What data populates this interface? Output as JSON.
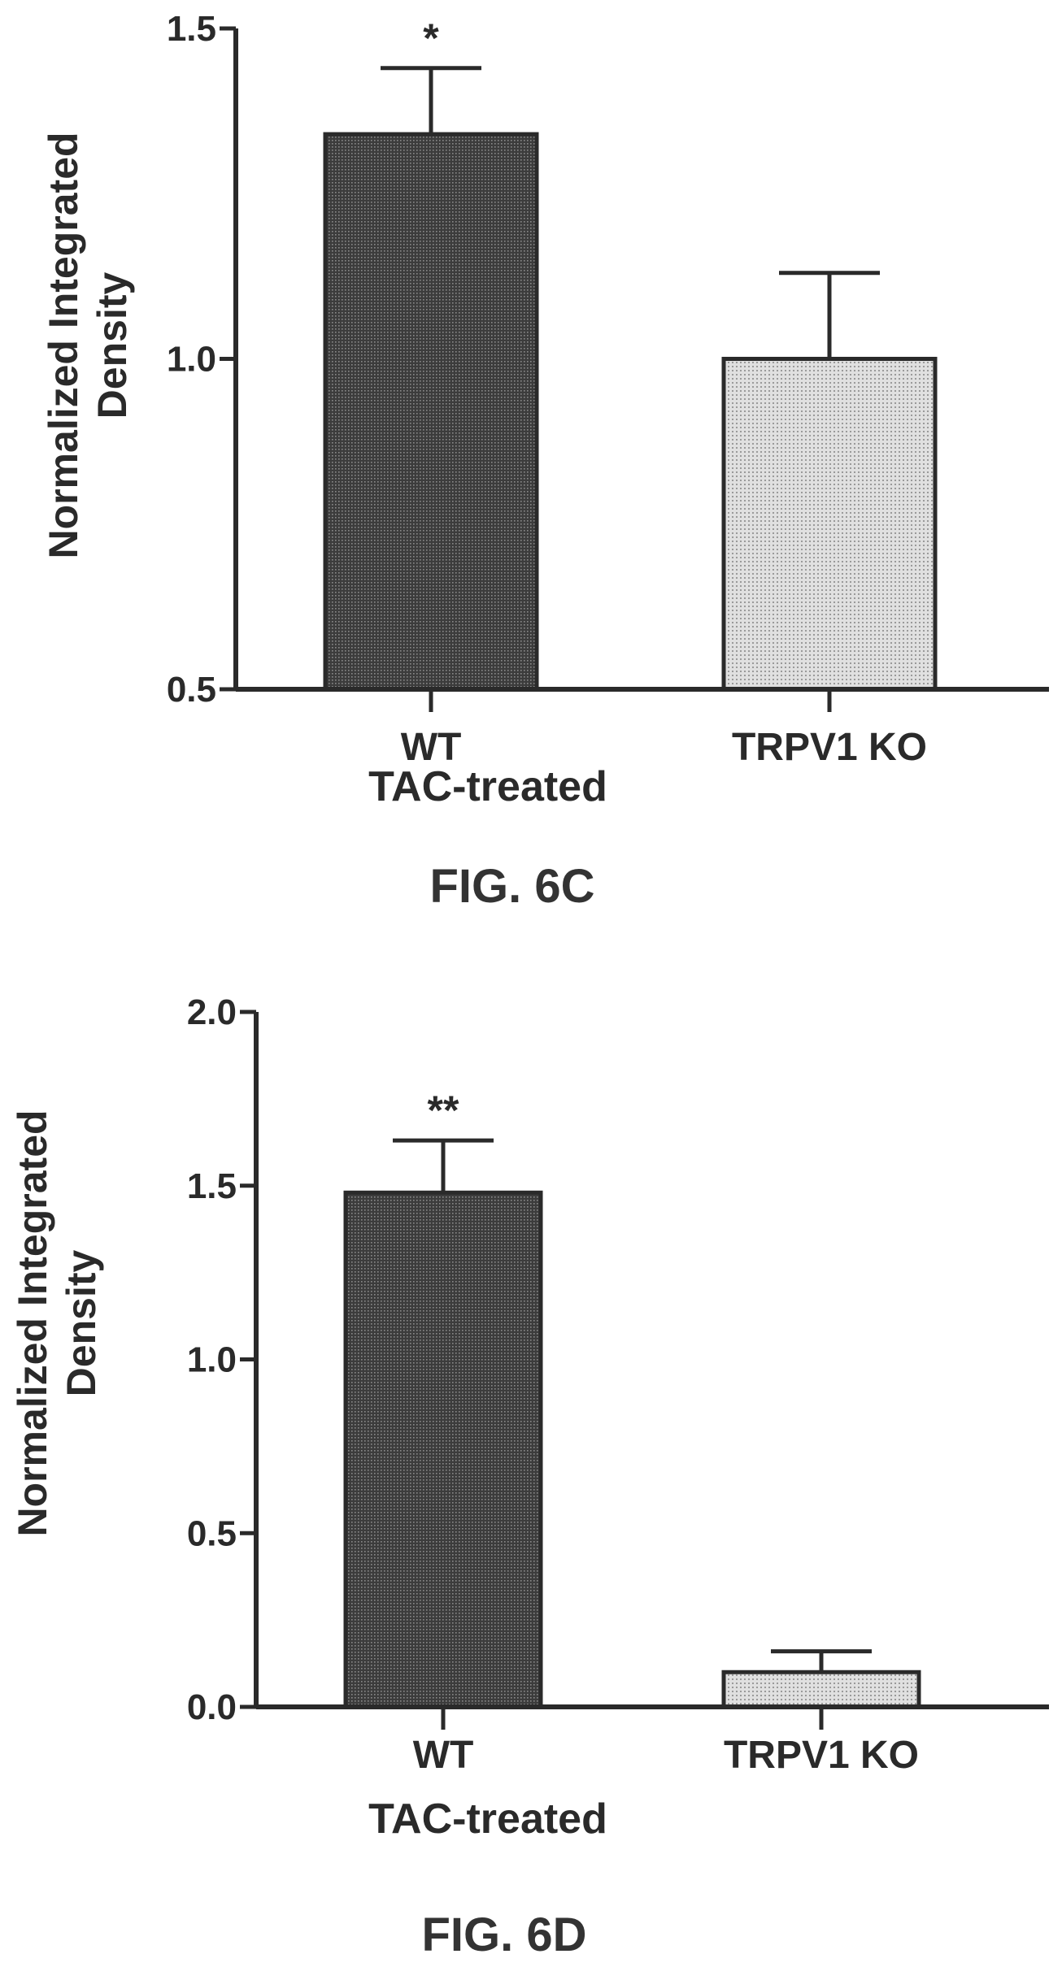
{
  "figures": [
    {
      "caption": "FIG. 6C"
    },
    {
      "caption": "FIG. 6D"
    }
  ],
  "colors": {
    "wt_bar": "#3a3a3a",
    "ko_bar": "#d2d2d2",
    "axis": "#2a2a2a"
  },
  "chart_data": [
    {
      "type": "bar",
      "categories": [
        "WT",
        "TRPV1 KO"
      ],
      "values": [
        1.34,
        1.0
      ],
      "errors": [
        0.1,
        0.13
      ],
      "significance": [
        "*",
        ""
      ],
      "xlabel": "TAC-treated",
      "ylabel": [
        "Normalized Integrated",
        "Density"
      ],
      "ylim": [
        0.5,
        1.5
      ],
      "yticks": [
        0.5,
        1.0,
        1.5
      ],
      "ytick_labels": [
        "0.5",
        "1.0",
        "1.5"
      ],
      "grid": false
    },
    {
      "type": "bar",
      "categories": [
        "WT",
        "TRPV1 KO"
      ],
      "values": [
        1.48,
        0.1
      ],
      "errors": [
        0.15,
        0.06
      ],
      "significance": [
        "**",
        ""
      ],
      "xlabel": "TAC-treated",
      "ylabel": [
        "Normalized Integrated",
        "Density"
      ],
      "ylim": [
        0.0,
        2.0
      ],
      "yticks": [
        0.0,
        0.5,
        1.0,
        1.5,
        2.0
      ],
      "ytick_labels": [
        "0.0",
        "0.5",
        "1.0",
        "1.5",
        "2.0"
      ],
      "grid": false
    }
  ]
}
